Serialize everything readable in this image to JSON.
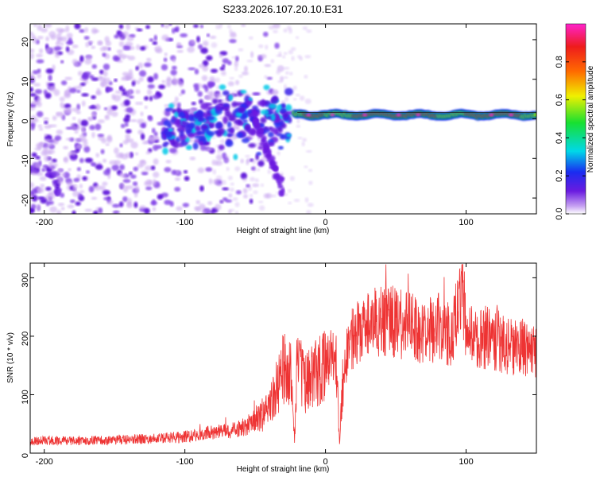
{
  "title": "S233.2026.107.20.10.E31",
  "colors": {
    "snr_line": "#ee3333",
    "spectrogram_faint": "#c9a5f0",
    "spectrogram_mid": "#7a35e6",
    "spectrogram_strong": "#5a10d8"
  },
  "chart_data": [
    {
      "type": "heatmap",
      "name": "spectrogram",
      "xlabel": "Height of straight line (km)",
      "ylabel": "Frequency (Hz)",
      "xlim": [
        -210,
        150
      ],
      "ylim": [
        -24,
        24
      ],
      "x_ticks": [
        -200,
        -100,
        0,
        100
      ],
      "y_ticks": [
        -20,
        -10,
        0,
        10,
        20
      ],
      "colorbar": {
        "label": "Normalized spectral amplitude",
        "range": [
          0,
          1
        ],
        "ticks": [
          "0.0",
          "0.2",
          "0.4",
          "0.6",
          "0.8"
        ],
        "colormap": [
          "#ffffff",
          "#c7a3f2",
          "#6a1be0",
          "#1a2cf0",
          "#00d8e8",
          "#18e030",
          "#f0f000",
          "#ff6a00",
          "#ee1c1c",
          "#ff22cc"
        ]
      },
      "features": [
        {
          "label": "scattered noise",
          "x_range": [
            -210,
            -90
          ],
          "freq_range": [
            -24,
            24
          ],
          "amplitude": 0.15
        },
        {
          "label": "dispersive onset",
          "x_range": [
            -115,
            -25
          ],
          "freq_range": [
            -15,
            8
          ],
          "amplitude": 0.4
        },
        {
          "label": "narrow band near 1 Hz",
          "x_range": [
            -20,
            150
          ],
          "freq_center": 1.0,
          "amplitude": 0.95
        }
      ]
    },
    {
      "type": "line",
      "name": "snr",
      "xlabel": "Height of straight line (km)",
      "ylabel": "SNR (10 * v/v)",
      "xlim": [
        -210,
        150
      ],
      "ylim": [
        0,
        325
      ],
      "x_ticks": [
        -200,
        -100,
        0,
        100
      ],
      "y_ticks": [
        0,
        100,
        200,
        300
      ],
      "series": [
        {
          "name": "SNR",
          "x": [
            -210,
            -200,
            -180,
            -160,
            -140,
            -120,
            -100,
            -90,
            -80,
            -70,
            -60,
            -50,
            -45,
            -40,
            -35,
            -30,
            -25,
            -22,
            -20,
            -15,
            -10,
            -5,
            0,
            5,
            8,
            10,
            12,
            15,
            20,
            30,
            40,
            50,
            60,
            70,
            80,
            90,
            97,
            100,
            110,
            120,
            130,
            140,
            150
          ],
          "values": [
            20,
            22,
            21,
            22,
            23,
            25,
            28,
            32,
            36,
            38,
            42,
            55,
            65,
            80,
            110,
            150,
            140,
            20,
            170,
            120,
            130,
            140,
            150,
            170,
            140,
            15,
            120,
            170,
            200,
            220,
            230,
            225,
            215,
            210,
            215,
            205,
            300,
            205,
            200,
            195,
            185,
            180,
            175
          ]
        }
      ]
    }
  ]
}
